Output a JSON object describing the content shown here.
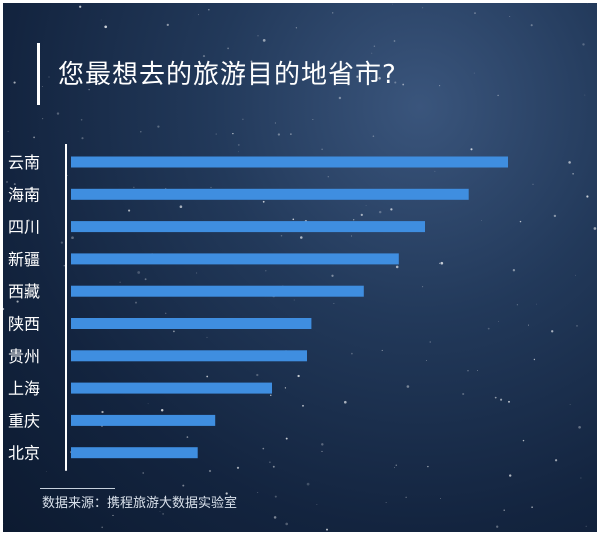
{
  "chart_data": {
    "type": "bar",
    "orientation": "horizontal",
    "title": "您最想去的旅游目的地省市?",
    "categories": [
      "云南",
      "海南",
      "四川",
      "新疆",
      "西藏",
      "陕西",
      "贵州",
      "上海",
      "重庆",
      "北京"
    ],
    "values": [
      100,
      91,
      81,
      75,
      67,
      55,
      54,
      46,
      33,
      29
    ],
    "xlabel": "",
    "ylabel": "",
    "grid": false,
    "colors": {
      "bar": "#3f8ee0",
      "axis": "#ffffff",
      "text": "#ffffff"
    }
  },
  "source": "数据来源：携程旅游大数据实验室"
}
